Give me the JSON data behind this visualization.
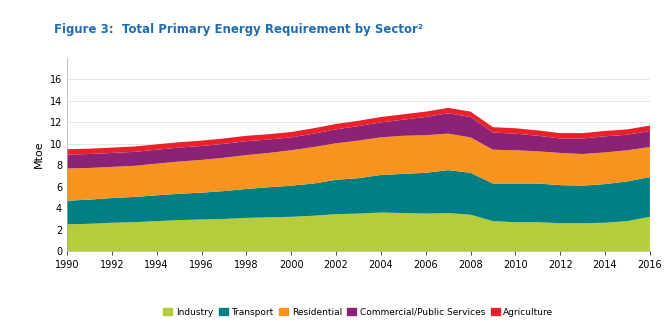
{
  "title": "Figure 3:  Total Primary Energy Requirement by Sector²",
  "ylabel": "Mtoe",
  "years": [
    1990,
    1991,
    1992,
    1993,
    1994,
    1995,
    1996,
    1997,
    1998,
    1999,
    2000,
    2001,
    2002,
    2003,
    2004,
    2005,
    2006,
    2007,
    2008,
    2009,
    2010,
    2011,
    2012,
    2013,
    2014,
    2015,
    2016
  ],
  "industry": [
    2.5,
    2.55,
    2.65,
    2.7,
    2.8,
    2.9,
    2.95,
    3.0,
    3.1,
    3.15,
    3.2,
    3.3,
    3.45,
    3.5,
    3.6,
    3.55,
    3.5,
    3.55,
    3.4,
    2.8,
    2.7,
    2.7,
    2.6,
    2.6,
    2.65,
    2.8,
    3.2
  ],
  "transport": [
    2.2,
    2.25,
    2.3,
    2.35,
    2.4,
    2.45,
    2.5,
    2.6,
    2.7,
    2.8,
    2.9,
    3.0,
    3.2,
    3.3,
    3.5,
    3.65,
    3.8,
    4.0,
    3.9,
    3.5,
    3.6,
    3.6,
    3.55,
    3.5,
    3.6,
    3.7,
    3.7
  ],
  "residential": [
    3.0,
    2.95,
    2.9,
    2.9,
    2.95,
    3.0,
    3.05,
    3.1,
    3.15,
    3.2,
    3.3,
    3.4,
    3.4,
    3.5,
    3.5,
    3.55,
    3.5,
    3.4,
    3.3,
    3.15,
    3.1,
    3.0,
    3.0,
    2.95,
    2.95,
    2.9,
    2.8
  ],
  "commercial": [
    1.3,
    1.3,
    1.3,
    1.3,
    1.3,
    1.3,
    1.3,
    1.3,
    1.3,
    1.25,
    1.2,
    1.25,
    1.3,
    1.35,
    1.4,
    1.5,
    1.7,
    1.9,
    1.9,
    1.6,
    1.55,
    1.45,
    1.35,
    1.45,
    1.5,
    1.45,
    1.5
  ],
  "agriculture": [
    0.5,
    0.5,
    0.5,
    0.5,
    0.5,
    0.5,
    0.5,
    0.5,
    0.5,
    0.5,
    0.5,
    0.5,
    0.5,
    0.5,
    0.5,
    0.5,
    0.5,
    0.5,
    0.5,
    0.5,
    0.5,
    0.5,
    0.5,
    0.5,
    0.5,
    0.5,
    0.5
  ],
  "color_industry": "#b5cd3a",
  "color_transport": "#007f85",
  "color_residential": "#f7941d",
  "color_commercial": "#8b2275",
  "color_agriculture": "#e8212a",
  "ylim": [
    0,
    18
  ],
  "yticks": [
    0,
    2,
    4,
    6,
    8,
    10,
    12,
    14,
    16
  ],
  "background_color": "#ffffff",
  "title_color": "#1f6cb0",
  "title_fontsize": 8.5,
  "legend_labels": [
    "Industry",
    "Transport",
    "Residential",
    "Commercial/Public Services",
    "Agriculture"
  ]
}
